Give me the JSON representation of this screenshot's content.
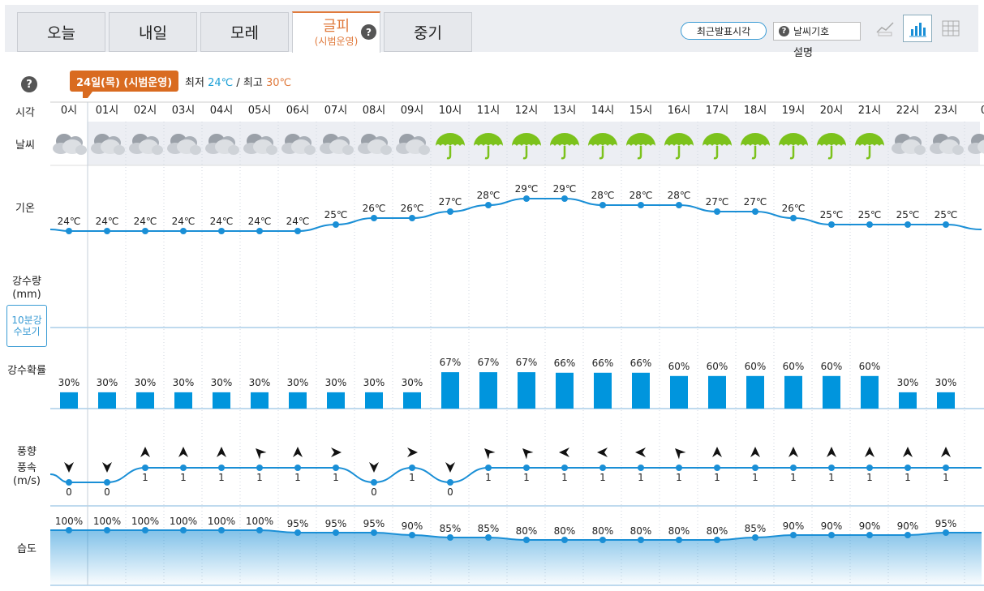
{
  "tabs": [
    {
      "label": "오늘",
      "active": false
    },
    {
      "label": "내일",
      "active": false
    },
    {
      "label": "모레",
      "active": false
    },
    {
      "label": "글피",
      "sub": "(시범운영)",
      "active": true
    },
    {
      "label": "중기",
      "active": false
    }
  ],
  "toolbar": {
    "recent_label": "최근발표시각",
    "symbol_label": "날씨기호",
    "explain_label": "설명"
  },
  "day": {
    "badge": "24일(목) (시범운영)",
    "min_label": "최저",
    "min_value": "24℃",
    "sep": "/",
    "max_label": "최고",
    "max_value": "30℃"
  },
  "row_labels": {
    "time": "시각",
    "weather": "날씨",
    "temp": "기온",
    "precip": "강수량",
    "precip_unit": "(mm)",
    "ten_min_btn": "10분강수보기",
    "prob": "강수확률",
    "wind1": "풍향",
    "wind2": "풍속",
    "wind_unit": "(m/s)",
    "humidity": "습도"
  },
  "hours": [
    "0시",
    "01시",
    "02시",
    "03시",
    "04시",
    "05시",
    "06시",
    "07시",
    "08시",
    "09시",
    "10시",
    "11시",
    "12시",
    "13시",
    "14시",
    "15시",
    "16시",
    "17시",
    "18시",
    "19시",
    "20시",
    "21시",
    "22시",
    "23시",
    "0"
  ],
  "weather": [
    "cloud",
    "cloud",
    "cloud",
    "cloud",
    "cloud",
    "cloud",
    "cloud",
    "cloud",
    "cloud",
    "cloud",
    "rain",
    "rain",
    "rain",
    "rain",
    "rain",
    "rain",
    "rain",
    "rain",
    "rain",
    "rain",
    "rain",
    "rain",
    "cloud",
    "cloud",
    "cloud"
  ],
  "colors": {
    "line": "#1a8fd6",
    "bar": "#0095dd",
    "temp_low": "#1a9fd6",
    "temp_high": "#e07a3c",
    "rain_icon": "#7cc21c"
  },
  "chart_data": [
    {
      "type": "line",
      "title": "기온",
      "unit": "℃",
      "x": [
        "0시",
        "01시",
        "02시",
        "03시",
        "04시",
        "05시",
        "06시",
        "07시",
        "08시",
        "09시",
        "10시",
        "11시",
        "12시",
        "13시",
        "14시",
        "15시",
        "16시",
        "17시",
        "18시",
        "19시",
        "20시",
        "21시",
        "22시",
        "23시"
      ],
      "values": [
        24,
        24,
        24,
        24,
        24,
        24,
        24,
        25,
        26,
        26,
        27,
        28,
        29,
        29,
        28,
        28,
        28,
        27,
        27,
        26,
        25,
        25,
        25,
        25
      ]
    },
    {
      "type": "bar",
      "title": "강수확률",
      "unit": "%",
      "x": [
        "0시",
        "01시",
        "02시",
        "03시",
        "04시",
        "05시",
        "06시",
        "07시",
        "08시",
        "09시",
        "10시",
        "11시",
        "12시",
        "13시",
        "14시",
        "15시",
        "16시",
        "17시",
        "18시",
        "19시",
        "20시",
        "21시",
        "22시",
        "23시"
      ],
      "values": [
        30,
        30,
        30,
        30,
        30,
        30,
        30,
        30,
        30,
        30,
        67,
        67,
        67,
        66,
        66,
        66,
        60,
        60,
        60,
        60,
        60,
        60,
        30,
        30
      ]
    },
    {
      "type": "line",
      "title": "풍속",
      "unit": "m/s",
      "x": [
        "0시",
        "01시",
        "02시",
        "03시",
        "04시",
        "05시",
        "06시",
        "07시",
        "08시",
        "09시",
        "10시",
        "11시",
        "12시",
        "13시",
        "14시",
        "15시",
        "16시",
        "17시",
        "18시",
        "19시",
        "20시",
        "21시",
        "22시",
        "23시"
      ],
      "values": [
        0,
        0,
        1,
        1,
        1,
        1,
        1,
        1,
        0,
        1,
        0,
        1,
        1,
        1,
        1,
        1,
        1,
        1,
        1,
        1,
        1,
        1,
        1,
        1
      ],
      "direction_deg": [
        180,
        180,
        0,
        0,
        0,
        315,
        0,
        90,
        180,
        90,
        180,
        315,
        315,
        270,
        270,
        270,
        315,
        0,
        0,
        0,
        0,
        0,
        0,
        0
      ]
    },
    {
      "type": "area",
      "title": "습도",
      "unit": "%",
      "x": [
        "0시",
        "01시",
        "02시",
        "03시",
        "04시",
        "05시",
        "06시",
        "07시",
        "08시",
        "09시",
        "10시",
        "11시",
        "12시",
        "13시",
        "14시",
        "15시",
        "16시",
        "17시",
        "18시",
        "19시",
        "20시",
        "21시",
        "22시",
        "23시"
      ],
      "values": [
        100,
        100,
        100,
        100,
        100,
        100,
        95,
        95,
        95,
        90,
        85,
        85,
        80,
        80,
        80,
        80,
        80,
        80,
        85,
        90,
        90,
        90,
        90,
        95
      ]
    }
  ]
}
